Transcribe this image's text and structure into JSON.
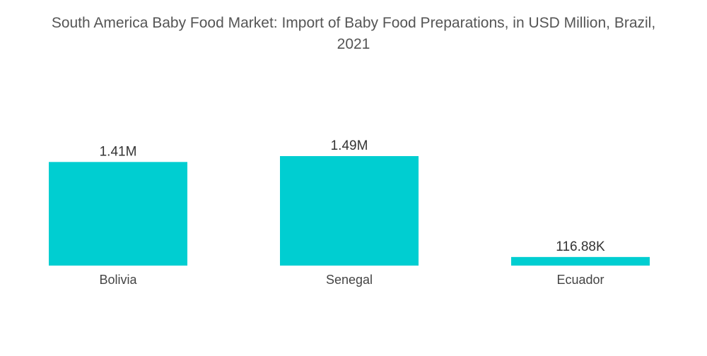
{
  "title_line1": "South America Baby Food Market: Import of Baby Food Preparations, in USD Million, Brazil,",
  "title_line2": "2021",
  "bar_color": "#00CED1",
  "chart_data": {
    "type": "bar",
    "title": "South America Baby Food Market: Import of Baby Food Preparations, in USD Million, Brazil, 2021",
    "categories": [
      "Bolivia",
      "Senegal",
      "Ecuador"
    ],
    "values": [
      1.41,
      1.49,
      0.11688
    ],
    "data_labels": [
      "1.41M",
      "1.49M",
      "116.88K"
    ],
    "xlabel": "",
    "ylabel": "",
    "ylim": [
      0,
      1.49
    ],
    "grid": false,
    "legend": "none"
  }
}
